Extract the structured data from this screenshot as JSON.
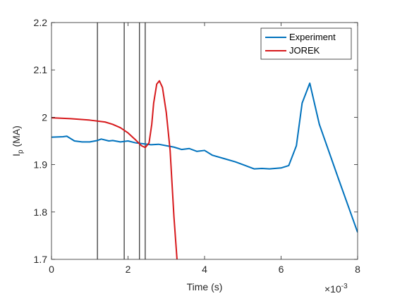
{
  "chart_data": {
    "type": "line",
    "xlabel": "Time (s)",
    "ylabel_main": "I",
    "ylabel_sub": "p",
    "ylabel_unit": " (MA)",
    "x_exponent_base": "×10",
    "x_exponent_power": "-3",
    "xlim": [
      0,
      8
    ],
    "ylim": [
      1.7,
      2.2
    ],
    "x_ticks": [
      0,
      2,
      4,
      6,
      8
    ],
    "x_tick_labels": [
      "0",
      "2",
      "4",
      "6",
      "8"
    ],
    "y_ticks": [
      1.7,
      1.8,
      1.9,
      2.0,
      2.1,
      2.2
    ],
    "y_tick_labels": [
      "1.7",
      "1.8",
      "1.9",
      "2",
      "2.1",
      "2.2"
    ],
    "grid": false,
    "legend_position": "top-right",
    "vertical_markers": [
      1.2,
      1.9,
      2.3,
      2.45
    ],
    "series": [
      {
        "name": "Experiment",
        "color": "#0072BD",
        "points": [
          [
            0.0,
            1.958
          ],
          [
            0.3,
            1.959
          ],
          [
            0.4,
            1.96
          ],
          [
            0.6,
            1.95
          ],
          [
            0.8,
            1.948
          ],
          [
            1.0,
            1.948
          ],
          [
            1.2,
            1.951
          ],
          [
            1.3,
            1.954
          ],
          [
            1.5,
            1.95
          ],
          [
            1.6,
            1.951
          ],
          [
            1.8,
            1.948
          ],
          [
            2.0,
            1.95
          ],
          [
            2.2,
            1.946
          ],
          [
            2.4,
            1.944
          ],
          [
            2.6,
            1.942
          ],
          [
            2.8,
            1.943
          ],
          [
            3.0,
            1.94
          ],
          [
            3.2,
            1.937
          ],
          [
            3.4,
            1.932
          ],
          [
            3.6,
            1.934
          ],
          [
            3.8,
            1.928
          ],
          [
            4.0,
            1.93
          ],
          [
            4.2,
            1.92
          ],
          [
            4.5,
            1.913
          ],
          [
            4.8,
            1.906
          ],
          [
            5.0,
            1.9
          ],
          [
            5.3,
            1.891
          ],
          [
            5.5,
            1.892
          ],
          [
            5.7,
            1.891
          ],
          [
            6.0,
            1.893
          ],
          [
            6.2,
            1.898
          ],
          [
            6.4,
            1.94
          ],
          [
            6.55,
            2.03
          ],
          [
            6.75,
            2.072
          ],
          [
            7.0,
            1.985
          ],
          [
            7.5,
            1.87
          ],
          [
            8.0,
            1.757
          ]
        ]
      },
      {
        "name": "JOREK",
        "color": "#D7191C",
        "points": [
          [
            0.0,
            1.999
          ],
          [
            0.5,
            1.997
          ],
          [
            1.0,
            1.994
          ],
          [
            1.4,
            1.99
          ],
          [
            1.6,
            1.985
          ],
          [
            1.8,
            1.978
          ],
          [
            2.0,
            1.967
          ],
          [
            2.2,
            1.952
          ],
          [
            2.35,
            1.94
          ],
          [
            2.45,
            1.936
          ],
          [
            2.55,
            1.946
          ],
          [
            2.62,
            1.985
          ],
          [
            2.67,
            2.03
          ],
          [
            2.75,
            2.07
          ],
          [
            2.82,
            2.077
          ],
          [
            2.9,
            2.063
          ],
          [
            3.0,
            2.01
          ],
          [
            3.1,
            1.93
          ],
          [
            3.2,
            1.79
          ],
          [
            3.28,
            1.7
          ]
        ]
      }
    ]
  }
}
